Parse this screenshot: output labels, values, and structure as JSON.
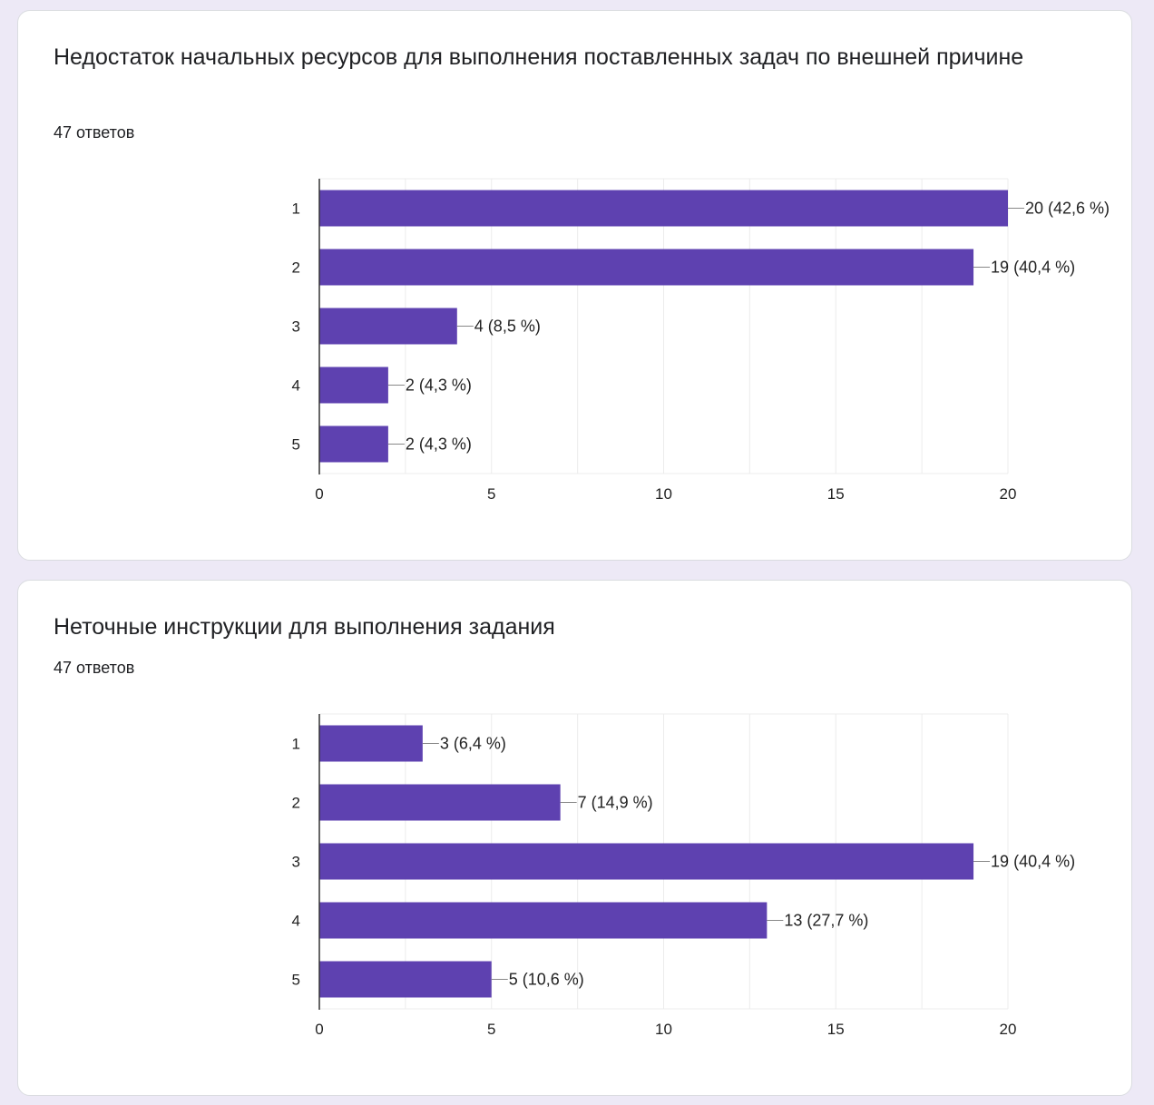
{
  "colors": {
    "bar": "#5e41b0",
    "grid": "#ececec",
    "axis": "#333333",
    "leader": "#888888",
    "card_border": "#dadce0",
    "page_background": "#ede9f6"
  },
  "cards": [
    {
      "title": "Недостаток начальных ресурсов для выполнения поставленных задач по внешней причине",
      "responses": "47 ответов"
    },
    {
      "title": "Неточные инструкции для выполнения задания",
      "responses": "47 ответов"
    }
  ],
  "chart_data": [
    {
      "type": "bar",
      "orientation": "horizontal",
      "title": "Недостаток начальных ресурсов для выполнения поставленных задач по внешней причине",
      "categories": [
        "1",
        "2",
        "3",
        "4",
        "5"
      ],
      "values": [
        20,
        19,
        4,
        2,
        2
      ],
      "labels": [
        "20 (42,6 %)",
        "19 (40,4 %)",
        "4 (8,5 %)",
        "2 (4,3 %)",
        "2 (4,3 %)"
      ],
      "xticks": [
        "0",
        "5",
        "10",
        "15",
        "20"
      ],
      "xlim": [
        0,
        20
      ],
      "grid": true
    },
    {
      "type": "bar",
      "orientation": "horizontal",
      "title": "Неточные инструкции для выполнения задания",
      "categories": [
        "1",
        "2",
        "3",
        "4",
        "5"
      ],
      "values": [
        3,
        7,
        19,
        13,
        5
      ],
      "labels": [
        "3 (6,4 %)",
        "7 (14,9 %)",
        "19 (40,4 %)",
        "13 (27,7 %)",
        "5 (10,6 %)"
      ],
      "xticks": [
        "0",
        "5",
        "10",
        "15",
        "20"
      ],
      "xlim": [
        0,
        20
      ],
      "grid": true
    }
  ]
}
